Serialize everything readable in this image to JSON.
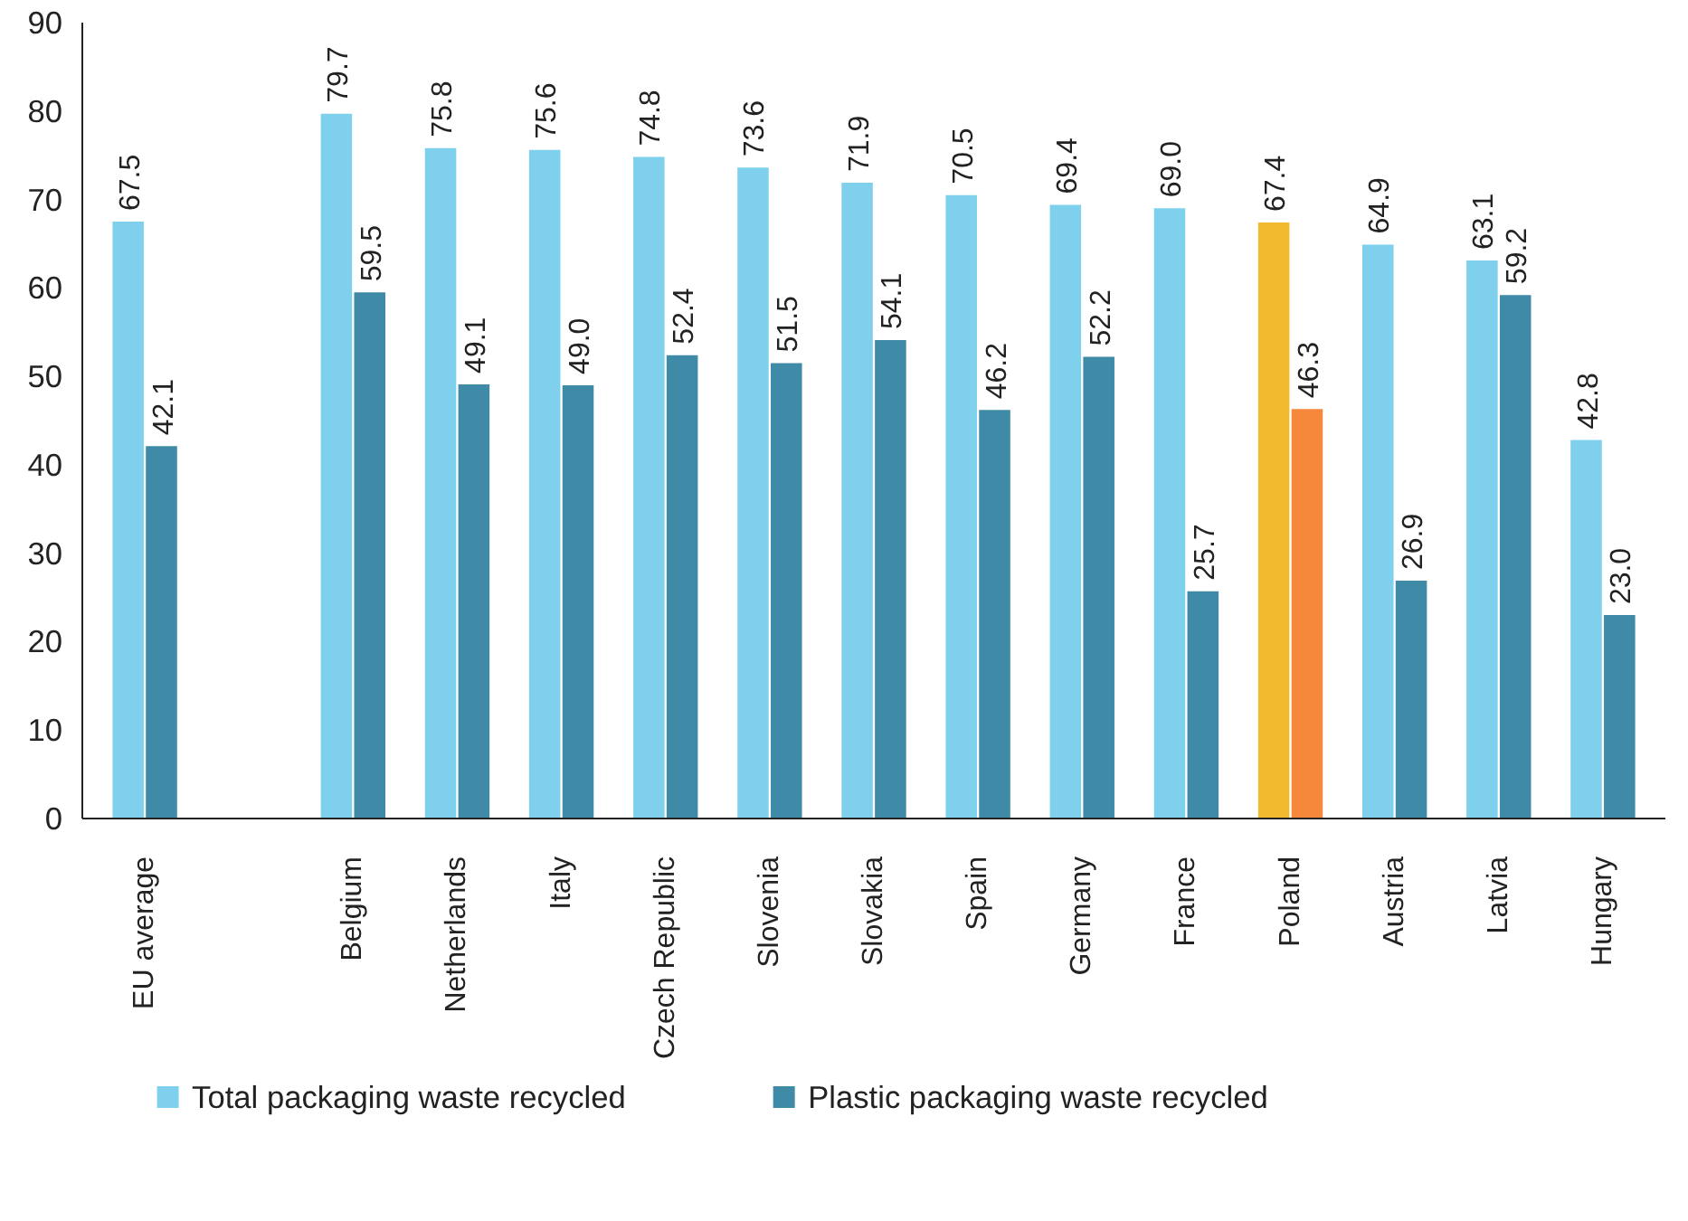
{
  "chart_data": {
    "type": "bar",
    "categories": [
      "EU average",
      null,
      "Belgium",
      "Netherlands",
      "Italy",
      "Czech Republic",
      "Slovenia",
      "Slovakia",
      "Spain",
      "Germany",
      "France",
      "Poland",
      "Austria",
      "Latvia",
      "Hungary"
    ],
    "series": [
      {
        "name": "Total packaging waste recycled",
        "color": "#7fd0ec",
        "colors": [
          "#7fd0ec",
          "#7fd0ec",
          "#7fd0ec",
          "#7fd0ec",
          "#7fd0ec",
          "#7fd0ec",
          "#7fd0ec",
          "#7fd0ec",
          "#7fd0ec",
          "#7fd0ec",
          "#7fd0ec",
          "#f0b92e",
          "#7fd0ec",
          "#7fd0ec",
          "#7fd0ec"
        ],
        "values": [
          67.5,
          null,
          79.7,
          75.8,
          75.6,
          74.8,
          73.6,
          71.9,
          70.5,
          69.4,
          69.0,
          67.4,
          64.9,
          63.1,
          42.8
        ],
        "value_labels": [
          "67.5",
          null,
          "79.7",
          "75.8",
          "75.6",
          "74.8",
          "73.6",
          "71.9",
          "70.5",
          "69.4",
          "69.0",
          "67.4",
          "64.9",
          "63.1",
          "42.8"
        ]
      },
      {
        "name": "Plastic packaging waste recycled",
        "color": "#3f8aa6",
        "colors": [
          "#3f8aa6",
          "#3f8aa6",
          "#3f8aa6",
          "#3f8aa6",
          "#3f8aa6",
          "#3f8aa6",
          "#3f8aa6",
          "#3f8aa6",
          "#3f8aa6",
          "#3f8aa6",
          "#3f8aa6",
          "#f5883a",
          "#3f8aa6",
          "#3f8aa6",
          "#3f8aa6"
        ],
        "values": [
          42.1,
          null,
          59.5,
          49.1,
          49.0,
          52.4,
          51.5,
          54.1,
          46.2,
          52.2,
          25.7,
          46.3,
          26.9,
          59.2,
          23.0
        ],
        "value_labels": [
          "42.1",
          null,
          "59.5",
          "49.1",
          "49.0",
          "52.4",
          "51.5",
          "54.1",
          "46.2",
          "52.2",
          "25.7",
          "46.3",
          "26.9",
          "59.2",
          "23.0"
        ]
      }
    ],
    "ylim": [
      0,
      90
    ],
    "yticks": [
      0,
      10,
      20,
      30,
      40,
      50,
      60,
      70,
      80,
      90
    ],
    "data_labels": true,
    "legend": "bottom"
  }
}
